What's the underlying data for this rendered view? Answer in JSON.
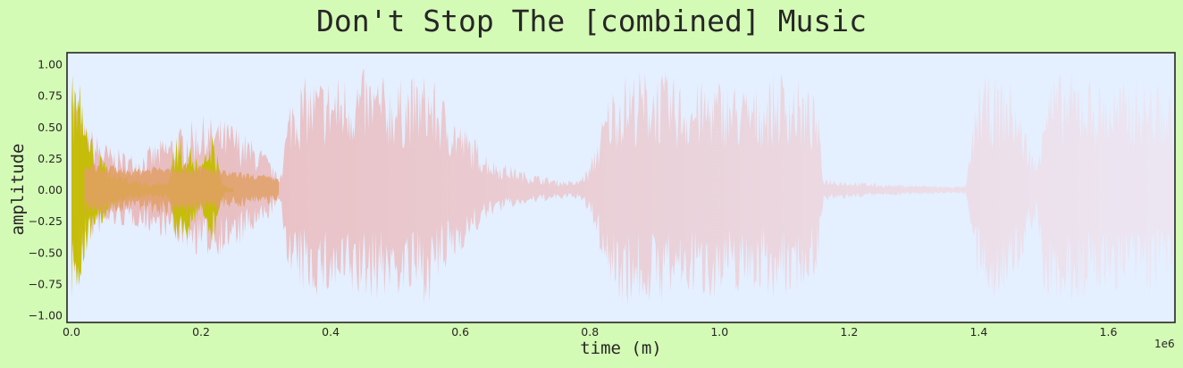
{
  "chart_data": {
    "type": "line",
    "title": "Don't Stop The [combined] Music",
    "xlabel": "time (m)",
    "ylabel": "amplitude",
    "x_scale_note": "1e6",
    "xlim": [
      0,
      1700000
    ],
    "ylim": [
      -1.05,
      1.05
    ],
    "x_ticks": [
      0,
      200000,
      400000,
      600000,
      800000,
      1000000,
      1200000,
      1400000,
      1600000
    ],
    "x_tick_labels": [
      "0.0",
      "0.2",
      "0.4",
      "0.6",
      "0.8",
      "1.0",
      "1.2",
      "1.4",
      "1.6"
    ],
    "y_ticks": [
      1.0,
      0.75,
      0.5,
      0.25,
      0.0,
      -0.25,
      -0.5,
      -0.75,
      -1.0
    ],
    "y_tick_labels": [
      "1.00",
      "0.75",
      "0.50",
      "0.25",
      "0.00",
      "−0.25",
      "−0.50",
      "−0.75",
      "−1.00"
    ],
    "grid": false,
    "background": "#d4fbb5",
    "plot_background": "#e4efff",
    "series": [
      {
        "color": "#e8b7b9",
        "color_end": "#ede6f2",
        "style": "waveform",
        "x": [
          0,
          20000,
          60000,
          100000,
          150000,
          200000,
          250000,
          300000,
          320000,
          340000,
          360000,
          400000,
          450000,
          500000,
          550000,
          600000,
          650000,
          700000,
          750000,
          780000,
          800000,
          830000,
          850000,
          900000,
          950000,
          1000000,
          1050000,
          1100000,
          1150000,
          1160000,
          1200000,
          1250000,
          1300000,
          1350000,
          1380000,
          1400000,
          1450000,
          1490000,
          1500000,
          1550000,
          1600000,
          1650000,
          1700000
        ],
        "y_upper": [
          0.95,
          0.55,
          0.35,
          0.28,
          0.45,
          0.6,
          0.55,
          0.3,
          0.1,
          0.85,
          0.9,
          0.92,
          0.97,
          0.88,
          0.95,
          0.55,
          0.25,
          0.15,
          0.08,
          0.07,
          0.2,
          0.8,
          0.95,
          0.98,
          0.85,
          0.9,
          0.82,
          0.98,
          0.75,
          0.1,
          0.07,
          0.05,
          0.04,
          0.03,
          0.03,
          0.92,
          0.88,
          0.2,
          0.9,
          0.97,
          0.85,
          0.92,
          0.8
        ],
        "y_lower": [
          -0.9,
          -0.45,
          -0.3,
          -0.3,
          -0.4,
          -0.55,
          -0.5,
          -0.28,
          -0.1,
          -0.82,
          -0.85,
          -0.88,
          -0.9,
          -0.85,
          -0.92,
          -0.5,
          -0.2,
          -0.12,
          -0.08,
          -0.07,
          -0.2,
          -0.78,
          -0.92,
          -0.93,
          -0.85,
          -0.88,
          -0.8,
          -0.9,
          -0.7,
          -0.1,
          -0.07,
          -0.05,
          -0.04,
          -0.03,
          -0.03,
          -0.88,
          -0.85,
          -0.2,
          -0.92,
          -0.93,
          -0.8,
          -0.88,
          -0.75
        ]
      },
      {
        "color": "#c4bd00",
        "style": "waveform",
        "x": [
          0,
          5000,
          10000,
          15000,
          20000,
          40000,
          80000,
          120000,
          150000,
          160000,
          180000,
          200000,
          220000,
          230000,
          240000,
          250000
        ],
        "y_upper": [
          0.9,
          1.0,
          0.98,
          0.85,
          0.6,
          0.3,
          0.12,
          0.06,
          0.08,
          0.45,
          0.4,
          0.2,
          0.5,
          0.1,
          0.02,
          0.02
        ],
        "y_lower": [
          -0.95,
          -0.9,
          -0.85,
          -0.8,
          -0.55,
          -0.3,
          -0.12,
          -0.06,
          -0.08,
          -0.45,
          -0.4,
          -0.2,
          -0.45,
          -0.1,
          -0.02,
          -0.02
        ]
      },
      {
        "color": "#e0a066",
        "style": "waveform-overlap",
        "x": [
          20000,
          60000,
          100000,
          150000,
          200000,
          250000,
          300000,
          320000
        ],
        "y_upper": [
          0.22,
          0.2,
          0.18,
          0.22,
          0.2,
          0.15,
          0.12,
          0.1
        ],
        "y_lower": [
          -0.22,
          -0.2,
          -0.18,
          -0.22,
          -0.2,
          -0.15,
          -0.12,
          -0.1
        ]
      }
    ]
  }
}
